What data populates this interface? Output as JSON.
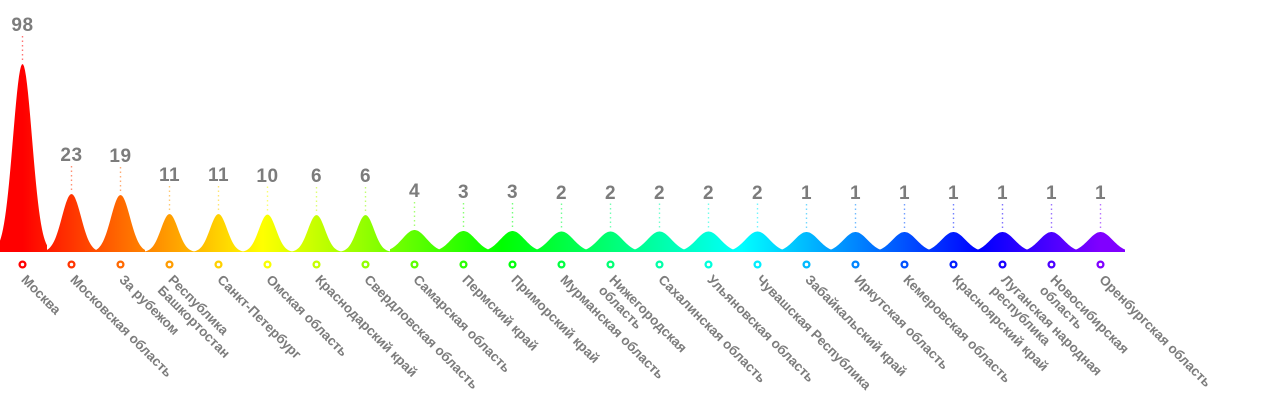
{
  "chart_data": {
    "type": "area",
    "subtype": "gaussian-peaks",
    "title": "",
    "xlabel": "",
    "ylabel": "",
    "categories": [
      "Москва",
      "Московская область",
      "За рубежом",
      "Республика\nБашкортостан",
      "Санкт-Петербург",
      "Омская область",
      "Краснодарский край",
      "Свердловская область",
      "Самарская область",
      "Пермский край",
      "Приморский край",
      "Мурманская область",
      "Нижегородская\nобласть",
      "Сахалинская область",
      "Ульяновская область",
      "Чувашская Республика",
      "Забайкальский край",
      "Иркутская область",
      "Кемеровская область",
      "Красноярский край",
      "Луганская народная\nреспублика",
      "Новосибирская\nобласть",
      "Оренбургская область"
    ],
    "values": [
      98,
      23,
      19,
      11,
      11,
      10,
      6,
      6,
      4,
      3,
      3,
      2,
      2,
      2,
      2,
      2,
      1,
      1,
      1,
      1,
      1,
      1,
      1
    ],
    "layout": {
      "grid": false,
      "legend": false,
      "label_rotation_deg": 45,
      "marker": "ring",
      "hue_start_deg": 0,
      "hue_end_deg": 270
    },
    "colors": {
      "background": "#ffffff",
      "text": "#7c7c7c",
      "gradient_stops": [
        "#ff0000",
        "#ff8000",
        "#ffff00",
        "#80ff00",
        "#00ff00",
        "#00ff80",
        "#00ffff",
        "#0080ff",
        "#0000ff",
        "#8000ff"
      ]
    }
  }
}
